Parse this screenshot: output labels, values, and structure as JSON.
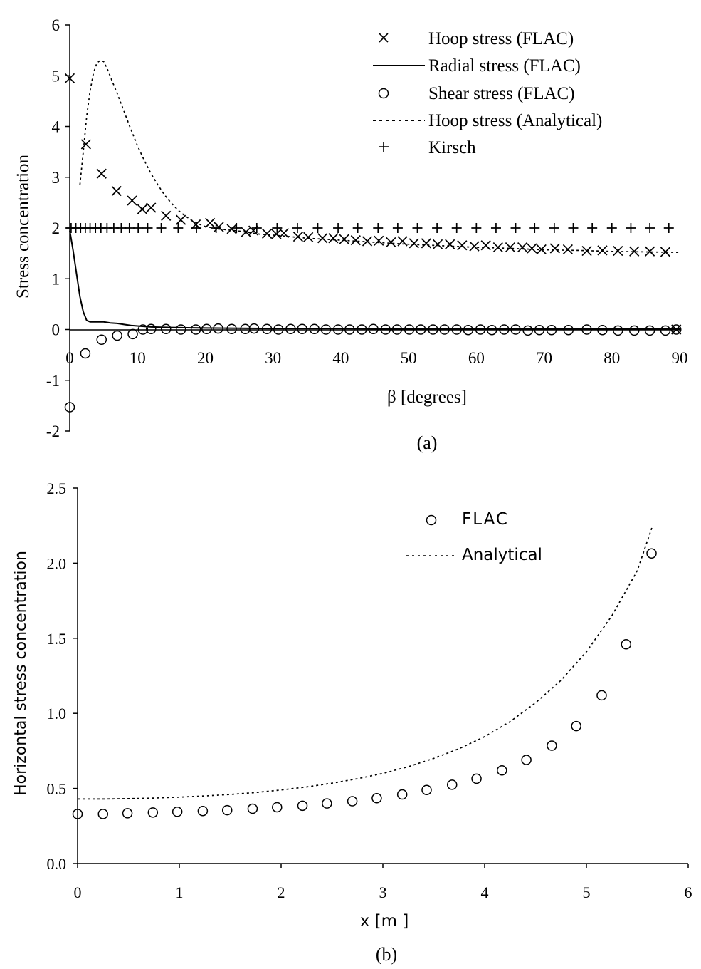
{
  "chart_data": [
    {
      "panel_label": "(a)",
      "type": "scatter",
      "xlabel": "β [degrees]",
      "ylabel": "Stress concentration",
      "xlim": [
        0,
        90
      ],
      "ylim": [
        -2,
        6
      ],
      "xticks": [
        "0",
        "10",
        "20",
        "30",
        "40",
        "50",
        "60",
        "70",
        "80",
        "90"
      ],
      "yticks": [
        "-2",
        "-1",
        "0",
        "1",
        "2",
        "3",
        "4",
        "5",
        "6"
      ],
      "legend_position": "top-right",
      "legend": [
        {
          "label": "Hoop stress (FLAC)",
          "marker": "x"
        },
        {
          "label": "Radial stress (FLAC)",
          "marker": "solid-line"
        },
        {
          "label": "Shear stress (FLAC)",
          "marker": "circle"
        },
        {
          "label": "Hoop stress (Analytical)",
          "marker": "dotted-line"
        },
        {
          "label": "Kirsch",
          "marker": "plus"
        }
      ],
      "series": [
        {
          "name": "Hoop stress (FLAC)",
          "style": "x-marker",
          "x": [
            0,
            2.4,
            4.7,
            6.9,
            9.2,
            10.7,
            12.0,
            14.2,
            16.4,
            18.6,
            20.7,
            22.0,
            23.9,
            26.0,
            27.1,
            29.1,
            30.5,
            31.6,
            33.7,
            35.2,
            37.3,
            38.9,
            40.5,
            42.2,
            43.9,
            45.6,
            47.4,
            49.1,
            50.8,
            52.6,
            54.3,
            56.1,
            57.9,
            59.7,
            61.4,
            63.2,
            65.0,
            66.8,
            68.2,
            69.6,
            71.6,
            73.5,
            76.3,
            78.6,
            80.9,
            83.3,
            85.6,
            87.9,
            89.5
          ],
          "y": [
            4.95,
            3.65,
            3.07,
            2.73,
            2.54,
            2.37,
            2.4,
            2.24,
            2.16,
            2.07,
            2.1,
            2.02,
            1.98,
            1.92,
            1.95,
            1.89,
            1.88,
            1.9,
            1.83,
            1.82,
            1.8,
            1.8,
            1.78,
            1.76,
            1.74,
            1.75,
            1.72,
            1.74,
            1.7,
            1.7,
            1.68,
            1.68,
            1.66,
            1.64,
            1.66,
            1.62,
            1.62,
            1.62,
            1.6,
            1.58,
            1.6,
            1.58,
            1.55,
            1.56,
            1.55,
            1.54,
            1.54,
            1.53,
            0.0
          ]
        },
        {
          "name": "Radial stress (FLAC)",
          "style": "solid-line",
          "x": [
            0,
            0.5,
            1,
            1.5,
            2,
            2.5,
            3,
            4,
            5,
            6,
            7,
            8,
            9,
            10,
            12,
            15,
            20,
            30,
            40,
            50,
            60,
            70,
            80,
            90
          ],
          "y": [
            1.95,
            1.55,
            1.1,
            0.65,
            0.35,
            0.18,
            0.15,
            0.15,
            0.15,
            0.13,
            0.12,
            0.1,
            0.08,
            0.07,
            0.05,
            0.04,
            0.03,
            0.02,
            0.02,
            0.01,
            0.01,
            0.01,
            0.01,
            0.01
          ]
        },
        {
          "name": "Shear stress (FLAC)",
          "style": "circle-marker",
          "x": [
            0,
            2.3,
            4.7,
            7.0,
            9.3,
            10.8,
            12.0,
            14.2,
            16.4,
            18.6,
            20.2,
            21.9,
            23.9,
            25.9,
            27.2,
            29.1,
            30.8,
            32.6,
            34.3,
            36.1,
            37.8,
            39.6,
            41.3,
            43.1,
            44.8,
            46.6,
            48.3,
            50.1,
            51.8,
            53.6,
            55.3,
            57.1,
            58.8,
            60.6,
            62.3,
            64.1,
            65.8,
            67.6,
            69.3,
            71.1,
            73.6,
            76.3,
            78.6,
            80.9,
            83.3,
            85.6,
            87.9,
            89.5
          ],
          "y": [
            -1.53,
            -0.47,
            -0.2,
            -0.12,
            -0.09,
            0.0,
            0.01,
            0.01,
            0.0,
            0.0,
            0.01,
            0.02,
            0.01,
            0.01,
            0.02,
            0.01,
            0.0,
            0.01,
            0.01,
            0.01,
            0.0,
            0.0,
            0.0,
            0.0,
            0.01,
            0.0,
            0.0,
            0.0,
            0.0,
            0.0,
            0.0,
            0.0,
            -0.01,
            0.0,
            -0.01,
            0.0,
            0.0,
            -0.02,
            -0.01,
            -0.01,
            -0.01,
            0.0,
            -0.01,
            -0.02,
            -0.02,
            -0.02,
            -0.02,
            0.0
          ]
        },
        {
          "name": "Hoop stress (Analytical)",
          "style": "dotted-line",
          "x": [
            1.5,
            2,
            2.5,
            3,
            3.5,
            4,
            4.5,
            5,
            5.5,
            6,
            7,
            8,
            9,
            10,
            11,
            12,
            13,
            14,
            15,
            16,
            17,
            18,
            19,
            20,
            22,
            25,
            28,
            30,
            35,
            40,
            45,
            50,
            55,
            60,
            65,
            70,
            75,
            80,
            85,
            90
          ],
          "y": [
            2.85,
            3.5,
            4.2,
            4.7,
            5.05,
            5.25,
            5.3,
            5.28,
            5.15,
            4.98,
            4.65,
            4.3,
            3.95,
            3.62,
            3.33,
            3.07,
            2.85,
            2.65,
            2.49,
            2.35,
            2.24,
            2.15,
            2.08,
            2.03,
            1.98,
            1.94,
            1.88,
            1.86,
            1.8,
            1.76,
            1.72,
            1.68,
            1.65,
            1.62,
            1.6,
            1.57,
            1.56,
            1.54,
            1.53,
            1.52
          ]
        },
        {
          "name": "Kirsch",
          "style": "plus-marker",
          "x": [
            0.2,
            0.9,
            1.6,
            2.3,
            3.0,
            3.8,
            4.6,
            5.5,
            6.5,
            7.6,
            8.8,
            10.1,
            11.5,
            13.5,
            16.0,
            18.7,
            21.6,
            24.6,
            27.6,
            30.6,
            33.6,
            36.6,
            39.6,
            42.5,
            45.5,
            48.4,
            51.3,
            54.2,
            57.1,
            60.0,
            62.9,
            65.8,
            68.6,
            71.5,
            74.3,
            77.1,
            80.0,
            82.8,
            85.6,
            88.4
          ],
          "y": [
            2,
            2,
            2,
            2,
            2,
            2,
            2,
            2,
            2,
            2,
            2,
            2,
            2,
            2,
            2,
            2,
            2,
            2,
            2,
            2,
            2,
            2,
            2,
            2,
            2,
            2,
            2,
            2,
            2,
            2,
            2,
            2,
            2,
            2,
            2,
            2,
            2,
            2,
            2,
            2
          ]
        }
      ]
    },
    {
      "panel_label": "(b)",
      "type": "scatter",
      "xlabel": "x [m ]",
      "ylabel": "Horizontal stress concentration",
      "xlim": [
        0,
        6
      ],
      "ylim": [
        0,
        2.5
      ],
      "xticks": [
        "0",
        "1",
        "2",
        "3",
        "4",
        "5",
        "6"
      ],
      "yticks": [
        "0.0",
        "0.5",
        "1.0",
        "1.5",
        "2.0",
        "2.5"
      ],
      "legend_position": "top-right",
      "legend": [
        {
          "label": "FLAC",
          "marker": "circle"
        },
        {
          "label": "Analytical",
          "marker": "dotted-line"
        }
      ],
      "series": [
        {
          "name": "FLAC",
          "style": "circle-marker",
          "x": [
            0.0,
            0.25,
            0.49,
            0.74,
            0.98,
            1.23,
            1.47,
            1.72,
            1.96,
            2.21,
            2.45,
            2.7,
            2.94,
            3.19,
            3.43,
            3.68,
            3.92,
            4.17,
            4.41,
            4.66,
            4.9,
            5.15,
            5.39,
            5.64
          ],
          "y": [
            0.33,
            0.33,
            0.335,
            0.34,
            0.345,
            0.35,
            0.355,
            0.365,
            0.375,
            0.385,
            0.4,
            0.415,
            0.435,
            0.46,
            0.49,
            0.525,
            0.565,
            0.62,
            0.69,
            0.785,
            0.915,
            1.12,
            1.46,
            2.065
          ]
        },
        {
          "name": "Analytical",
          "style": "dotted-line",
          "x": [
            0.0,
            0.25,
            0.5,
            0.75,
            1.0,
            1.25,
            1.5,
            1.75,
            2.0,
            2.25,
            2.5,
            2.75,
            3.0,
            3.25,
            3.5,
            3.75,
            4.0,
            4.25,
            4.5,
            4.75,
            5.0,
            5.25,
            5.5,
            5.65
          ],
          "y": [
            0.43,
            0.43,
            0.432,
            0.436,
            0.442,
            0.45,
            0.46,
            0.473,
            0.49,
            0.51,
            0.535,
            0.565,
            0.6,
            0.645,
            0.7,
            0.765,
            0.845,
            0.945,
            1.07,
            1.22,
            1.41,
            1.65,
            1.95,
            2.25
          ]
        }
      ]
    }
  ]
}
